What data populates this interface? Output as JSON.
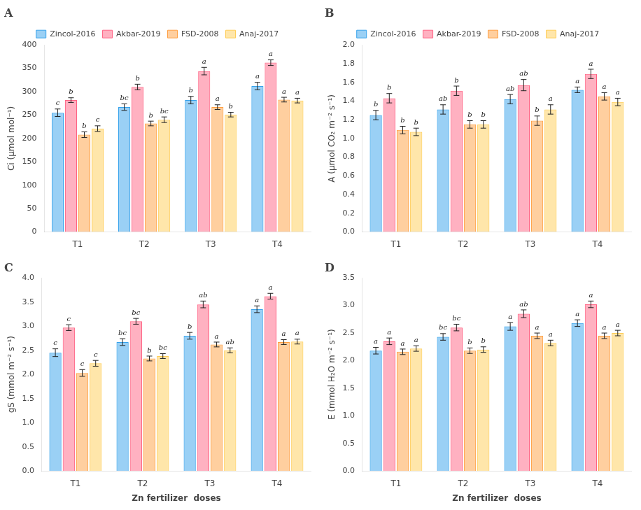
{
  "chart_data": [
    {
      "type": "bar",
      "title": "A",
      "y_label": "Ci (µmol mol⁻¹)",
      "categories": [
        "T1",
        "T2",
        "T3",
        "T4"
      ],
      "series": [
        {
          "name": "Zincol-2016",
          "values": [
            255,
            267,
            282,
            312
          ],
          "errors": [
            8,
            7,
            8,
            8
          ],
          "letters": [
            "c",
            "bc",
            "b",
            "a"
          ]
        },
        {
          "name": "Akbar-2019",
          "values": [
            282,
            310,
            344,
            362
          ],
          "errors": [
            5,
            6,
            8,
            6
          ],
          "letters": [
            "b",
            "b",
            "a",
            "a"
          ]
        },
        {
          "name": "FSD-2008",
          "values": [
            208,
            232,
            267,
            283
          ],
          "errors": [
            6,
            5,
            5,
            5
          ],
          "letters": [
            "b",
            "b",
            "a",
            "a"
          ]
        },
        {
          "name": "Anaj-2017",
          "values": [
            221,
            240,
            251,
            281
          ],
          "errors": [
            6,
            6,
            5,
            5
          ],
          "letters": [
            "c",
            "bc",
            "b",
            "a"
          ]
        }
      ],
      "ylim": [
        0,
        400
      ],
      "yticks": [
        0,
        50,
        100,
        150,
        200,
        250,
        300,
        350,
        400
      ],
      "grid": false,
      "legend": "top"
    },
    {
      "type": "bar",
      "title": "B",
      "y_label": "A (µmol CO₂ m⁻² s⁻¹)",
      "categories": [
        "T1",
        "T2",
        "T3",
        "T4"
      ],
      "series": [
        {
          "name": "Zincol-2016",
          "values": [
            1.25,
            1.31,
            1.42,
            1.52
          ],
          "errors": [
            0.05,
            0.05,
            0.05,
            0.03
          ],
          "letters": [
            "b",
            "ab",
            "ab",
            "a"
          ]
        },
        {
          "name": "Akbar-2019",
          "values": [
            1.43,
            1.51,
            1.57,
            1.69
          ],
          "errors": [
            0.05,
            0.05,
            0.06,
            0.05
          ],
          "letters": [
            "b",
            "b",
            "ab",
            "a"
          ]
        },
        {
          "name": "FSD-2008",
          "values": [
            1.09,
            1.15,
            1.19,
            1.45
          ],
          "errors": [
            0.04,
            0.04,
            0.05,
            0.04
          ],
          "letters": [
            "b",
            "b",
            "b",
            "a"
          ]
        },
        {
          "name": "Anaj-2017",
          "values": [
            1.07,
            1.15,
            1.31,
            1.39
          ],
          "errors": [
            0.04,
            0.04,
            0.05,
            0.04
          ],
          "letters": [
            "b",
            "b",
            "a",
            "a"
          ]
        }
      ],
      "ylim": [
        0,
        2
      ],
      "yticks": [
        {
          "value": 0,
          "label": "0.0"
        },
        0.2,
        0.4,
        0.6,
        0.8,
        {
          "value": 1,
          "label": "1.0"
        },
        1.2,
        1.4,
        1.6,
        1.8,
        {
          "value": 2,
          "label": "2.0"
        }
      ],
      "grid": false,
      "legend": "top"
    },
    {
      "type": "bar",
      "title": "C",
      "y_label": "gS (mmol m⁻² s⁻¹)",
      "x_label": "Zn fertilizer  doses",
      "categories": [
        "T1",
        "T2",
        "T3",
        "T4"
      ],
      "series": [
        {
          "name": "Zincol-2016",
          "values": [
            2.45,
            2.67,
            2.8,
            3.35
          ],
          "errors": [
            0.08,
            0.07,
            0.07,
            0.07
          ],
          "letters": [
            "c",
            "bc",
            "b",
            "a"
          ]
        },
        {
          "name": "Akbar-2019",
          "values": [
            2.97,
            3.1,
            3.45,
            3.62
          ],
          "errors": [
            0.06,
            0.06,
            0.07,
            0.06
          ],
          "letters": [
            "c",
            "bc",
            "ab",
            "a"
          ]
        },
        {
          "name": "FSD-2008",
          "values": [
            2.03,
            2.33,
            2.62,
            2.67
          ],
          "errors": [
            0.07,
            0.05,
            0.05,
            0.05
          ],
          "letters": [
            "c",
            "b",
            "a",
            "a"
          ]
        },
        {
          "name": "Anaj-2017",
          "values": [
            2.23,
            2.38,
            2.5,
            2.68
          ],
          "errors": [
            0.06,
            0.05,
            0.05,
            0.05
          ],
          "letters": [
            "c",
            "bc",
            "ab",
            "a"
          ]
        }
      ],
      "ylim": [
        0,
        4
      ],
      "yticks": [
        {
          "value": 0,
          "label": "0.0"
        },
        0.5,
        {
          "value": 1,
          "label": "1.0"
        },
        1.5,
        {
          "value": 2,
          "label": "2.0"
        },
        2.5,
        {
          "value": 3,
          "label": "3.0"
        },
        3.5,
        {
          "value": 4,
          "label": "4.0"
        }
      ],
      "grid": false
    },
    {
      "type": "bar",
      "title": "D",
      "y_label": "E (mmol H₂O m⁻² s⁻¹)",
      "x_label": "Zn fertilizer  doses",
      "categories": [
        "T1",
        "T2",
        "T3",
        "T4"
      ],
      "series": [
        {
          "name": "Zincol-2016",
          "values": [
            2.18,
            2.43,
            2.62,
            2.68
          ],
          "errors": [
            0.06,
            0.06,
            0.07,
            0.06
          ],
          "letters": [
            "a",
            "bc",
            "a",
            "a"
          ]
        },
        {
          "name": "Akbar-2019",
          "values": [
            2.35,
            2.6,
            2.85,
            3.02
          ],
          "errors": [
            0.06,
            0.06,
            0.07,
            0.06
          ],
          "letters": [
            "a",
            "bc",
            "ab",
            "a"
          ]
        },
        {
          "name": "FSD-2008",
          "values": [
            2.16,
            2.18,
            2.45,
            2.45
          ],
          "errors": [
            0.05,
            0.05,
            0.05,
            0.05
          ],
          "letters": [
            "a",
            "b",
            "a",
            "a"
          ]
        },
        {
          "name": "Anaj-2017",
          "values": [
            2.22,
            2.2,
            2.32,
            2.5
          ],
          "errors": [
            0.05,
            0.05,
            0.05,
            0.05
          ],
          "letters": [
            "a",
            "b",
            "a",
            "a"
          ]
        }
      ],
      "ylim": [
        0,
        3.5
      ],
      "yticks": [
        {
          "value": 0,
          "label": "0.0"
        },
        0.5,
        {
          "value": 1,
          "label": "1.0"
        },
        1.5,
        {
          "value": 2,
          "label": "2.0"
        },
        2.5,
        {
          "value": 3,
          "label": "3.0"
        },
        3.5
      ],
      "grid": false
    }
  ]
}
